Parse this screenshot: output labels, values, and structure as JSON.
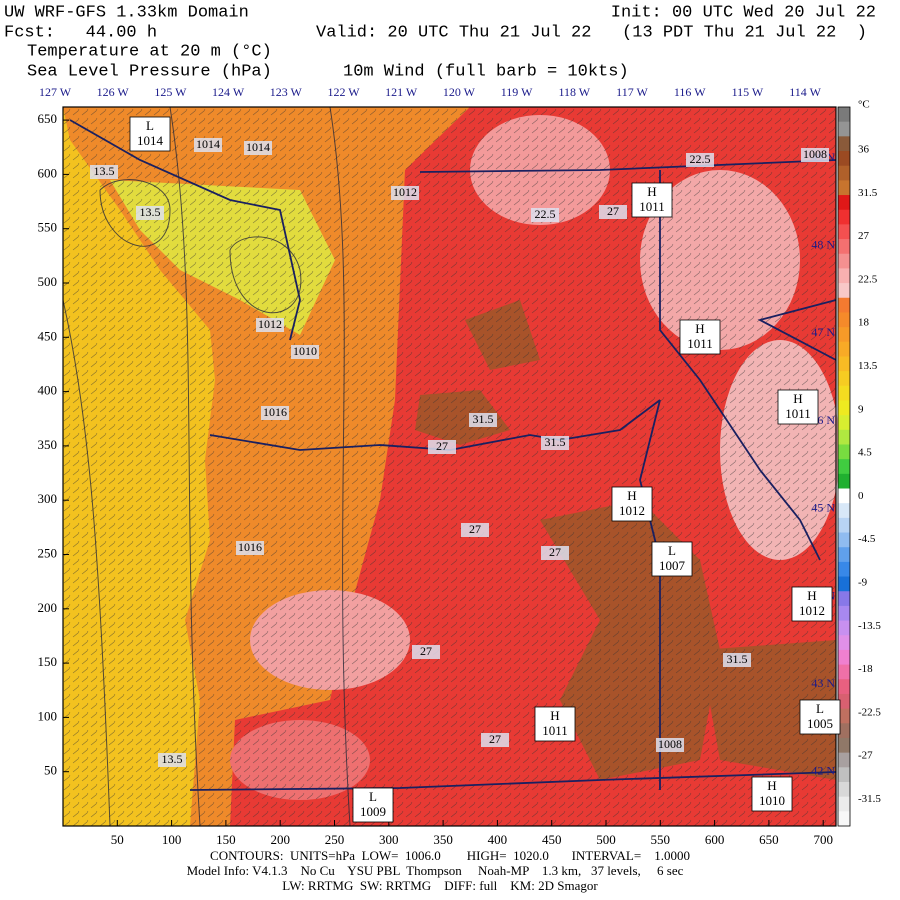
{
  "header": {
    "title": "UW WRF-GFS 1.33km Domain",
    "init": "Init: 00 UTC Wed 20 Jul 22",
    "fcst": "Fcst:   44.00 h",
    "valid": "Valid: 20 UTC Thu 21 Jul 22   (13 PDT Thu 21 Jul 22  )",
    "field1": "Temperature at 20 m (°C)",
    "field2": "Sea Level Pressure (hPa)",
    "field3": "10m Wind (full barb = 10kts)"
  },
  "longitude_labels": [
    "127 W",
    "126 W",
    "125 W",
    "124 W",
    "123 W",
    "122 W",
    "121 W",
    "120 W",
    "119 W",
    "118 W",
    "117 W",
    "116 W",
    "115 W",
    "114 W"
  ],
  "latitude_labels": [
    "49 N",
    "48 N",
    "47 N",
    "46 N",
    "45 N",
    "44 N",
    "43 N",
    "42 N"
  ],
  "x_ticks": [
    50,
    100,
    150,
    200,
    250,
    300,
    350,
    400,
    450,
    500,
    550,
    600,
    650,
    700
  ],
  "y_ticks": [
    650,
    600,
    550,
    500,
    450,
    400,
    350,
    300,
    250,
    200,
    150,
    100,
    50
  ],
  "colorbar": {
    "unit": "°C",
    "labels": [
      36,
      31.5,
      27,
      22.5,
      18,
      13.5,
      9,
      4.5,
      0,
      -4.5,
      -9,
      -13.5,
      -18,
      -22.5,
      -27,
      -31.5
    ],
    "colors": [
      "#7a7a7a",
      "#949494",
      "#8a5a3a",
      "#9b4a22",
      "#b0602a",
      "#c8742e",
      "#e01818",
      "#f03030",
      "#f45050",
      "#f47070",
      "#f49090",
      "#f8b0b0",
      "#f8c8c8",
      "#f47a30",
      "#f58a2a",
      "#f79a28",
      "#f8aa26",
      "#f8bb24",
      "#f6cc22",
      "#f4dc20",
      "#eeea20",
      "#d8ee30",
      "#b0e840",
      "#78dc40",
      "#40cc40",
      "#20b030",
      "#ffffff",
      "#d8e8f8",
      "#b8d4f4",
      "#90bcf0",
      "#60a0ec",
      "#3888e8",
      "#1870d8",
      "#8878e8",
      "#a888f0",
      "#c890f0",
      "#e090e8",
      "#f080d0",
      "#f070a8",
      "#e86080",
      "#d86070",
      "#c07060",
      "#a07060",
      "#907868",
      "#a8a0a0",
      "#c0c0c0",
      "#d8d8d8",
      "#ececec",
      "#f8f8f8"
    ]
  },
  "pressure_centers": [
    {
      "kind": "L",
      "value": 1014
    },
    {
      "kind": "H",
      "value": 1011
    },
    {
      "kind": "H",
      "value": 1011
    },
    {
      "kind": "H",
      "value": 1011
    },
    {
      "kind": "H",
      "value": 1012
    },
    {
      "kind": "L",
      "value": 1007
    },
    {
      "kind": "H",
      "value": 1012
    },
    {
      "kind": "L",
      "value": 1005
    },
    {
      "kind": "H",
      "value": 1011
    },
    {
      "kind": "L",
      "value": 1009
    },
    {
      "kind": "H",
      "value": 1010
    }
  ],
  "contour_labels": [
    1014,
    1014,
    13.5,
    13.5,
    1012,
    22.5,
    27,
    22.5,
    1008,
    1012,
    1010,
    1016,
    31.5,
    27,
    31.5,
    27,
    1016,
    27,
    27,
    31.5,
    27,
    1008,
    13.5
  ],
  "footer": {
    "contours": "CONTOURS:  UNITS=hPa  LOW=  1006.0        HIGH=  1020.0       INTERVAL=    1.0000",
    "model": "Model Info: V4.1.3    No Cu    YSU PBL  Thompson     Noah-MP    1.3 km,   37 levels,     6 sec",
    "physics": "LW: RRTMG  SW: RRTMG    DIFF: full    KM: 2D Smagor"
  }
}
